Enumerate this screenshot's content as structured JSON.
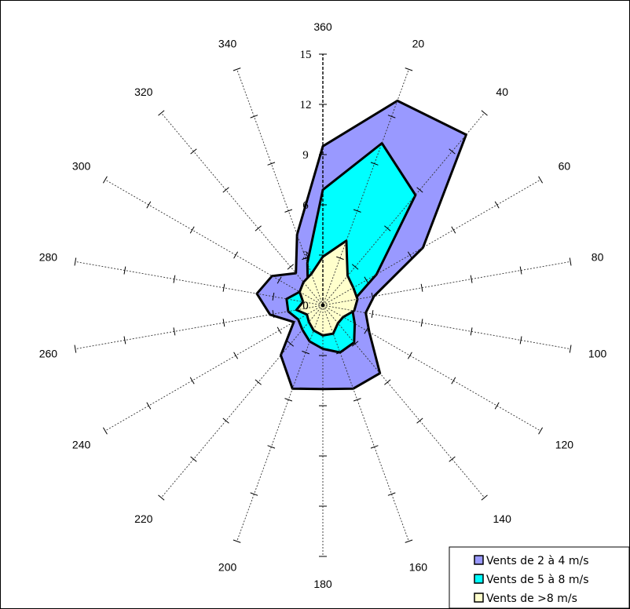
{
  "chart_data": {
    "type": "radar",
    "directions": [
      "360",
      "20",
      "40",
      "60",
      "80",
      "100",
      "120",
      "140",
      "160",
      "180",
      "200",
      "220",
      "240",
      "260",
      "280",
      "300",
      "320",
      "340"
    ],
    "radial_axis": {
      "min": 0,
      "max": 15,
      "ticks": [
        "0",
        "3",
        "6",
        "9",
        "12",
        "15"
      ]
    },
    "series": [
      {
        "name": "Vents de 2 à 4 m/s",
        "color": "#9999ff",
        "values": [
          9.5,
          13.0,
          13.3,
          6.9,
          3.1,
          2.6,
          3.2,
          5.3,
          5.3,
          5.0,
          5.3,
          3.9,
          2.0,
          3.2,
          4.0,
          3.5,
          2.5,
          4.5
        ]
      },
      {
        "name": "Vents de 5 à 8 m/s",
        "color": "#00ffff",
        "values": [
          6.9,
          10.3,
          8.6,
          3.7,
          1.9,
          1.8,
          2.2,
          2.9,
          3.0,
          2.6,
          2.3,
          1.9,
          1.7,
          2.1,
          2.2,
          1.6,
          1.4,
          2.7
        ]
      },
      {
        "name": "Vents de >8 m/s",
        "color": "#ffffcc",
        "values": [
          2.9,
          4.1,
          2.3,
          2.1,
          2.1,
          1.9,
          1.4,
          1.4,
          1.8,
          1.8,
          1.6,
          1.3,
          1.1,
          1.6,
          1.2,
          1.6,
          1.8,
          2.0
        ]
      }
    ],
    "legend": {
      "position": "bottom-right"
    }
  }
}
